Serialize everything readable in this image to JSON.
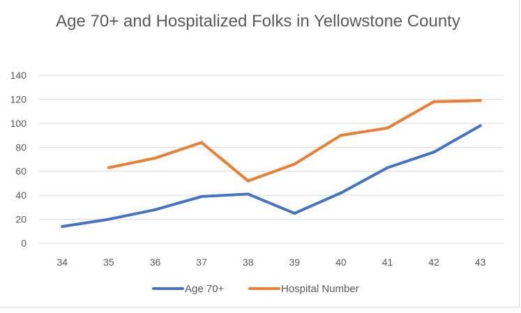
{
  "chart_data": {
    "type": "line",
    "title": "Age 70+ and Hospitalized Folks in Yellowstone County",
    "xlabel": "",
    "ylabel": "",
    "categories": [
      "34",
      "35",
      "36",
      "37",
      "38",
      "39",
      "40",
      "41",
      "42",
      "43"
    ],
    "ylim": [
      0,
      140
    ],
    "yticks": [
      0,
      20,
      40,
      60,
      80,
      100,
      120,
      140
    ],
    "grid": true,
    "legend_position": "bottom",
    "series": [
      {
        "name": "Age 70+",
        "color": "#4472c4",
        "values": [
          14,
          20,
          28,
          39,
          41,
          25,
          42,
          63,
          76,
          98
        ]
      },
      {
        "name": "Hospital Number",
        "color": "#ed7d31",
        "values": [
          null,
          63,
          71,
          84,
          52,
          66,
          90,
          96,
          118,
          119
        ]
      }
    ]
  }
}
